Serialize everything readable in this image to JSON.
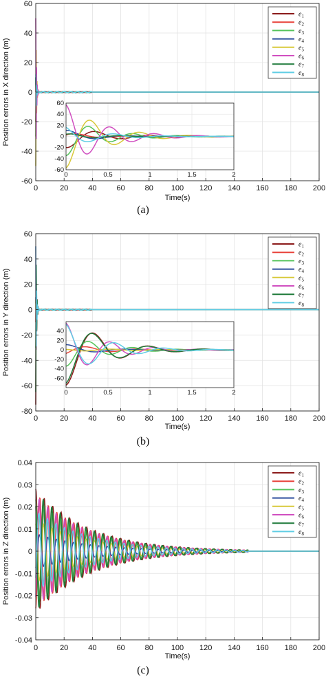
{
  "chart_data": [
    {
      "type": "line",
      "panel_label": "(a)",
      "xlabel": "Time(s)",
      "ylabel": "Position errors in X direction (m)",
      "xlim": [
        0,
        200
      ],
      "ylim": [
        -60,
        60
      ],
      "xticks": [
        0,
        20,
        40,
        60,
        80,
        100,
        120,
        140,
        160,
        180,
        200
      ],
      "yticks": [
        -60,
        -40,
        -20,
        0,
        20,
        40,
        60
      ],
      "grid": true,
      "legend_position": "top-right",
      "series": [
        {
          "name": "e1",
          "color": "#8b1a1a",
          "initial_value": -20
        },
        {
          "name": "e2",
          "color": "#e8423a",
          "initial_value": 0
        },
        {
          "name": "e3",
          "color": "#55c35a",
          "initial_value": -30
        },
        {
          "name": "e4",
          "color": "#2f4f9e",
          "initial_value": 5
        },
        {
          "name": "e5",
          "color": "#d8c93a",
          "initial_value": -50
        },
        {
          "name": "e6",
          "color": "#d04fc0",
          "initial_value": 50
        },
        {
          "name": "e7",
          "color": "#1f7a3a",
          "initial_value": 10
        },
        {
          "name": "e8",
          "color": "#5fcde4",
          "initial_value": 12
        }
      ],
      "inset": {
        "xlim": [
          0,
          2
        ],
        "ylim": [
          -60,
          60
        ],
        "xticks": [
          0,
          0.5,
          1,
          1.5,
          2
        ],
        "yticks": [
          -60,
          -40,
          -20,
          0,
          20,
          40,
          60
        ]
      }
    },
    {
      "type": "line",
      "panel_label": "(b)",
      "xlabel": "Time(s)",
      "ylabel": "Position errors in Y direction (m)",
      "xlim": [
        0,
        200
      ],
      "ylim": [
        -80,
        60
      ],
      "xticks": [
        0,
        20,
        40,
        60,
        80,
        100,
        120,
        140,
        160,
        180,
        200
      ],
      "yticks": [
        -80,
        -60,
        -40,
        -20,
        0,
        20,
        40,
        60
      ],
      "grid": true,
      "legend_position": "top-right",
      "series": [
        {
          "name": "e1",
          "color": "#8b1a1a",
          "initial_value": -75
        },
        {
          "name": "e2",
          "color": "#e8423a",
          "initial_value": -10
        },
        {
          "name": "e3",
          "color": "#55c35a",
          "initial_value": -30
        },
        {
          "name": "e4",
          "color": "#2f4f9e",
          "initial_value": 5
        },
        {
          "name": "e5",
          "color": "#d8c93a",
          "initial_value": 8
        },
        {
          "name": "e6",
          "color": "#d04fc0",
          "initial_value": 50
        },
        {
          "name": "e7",
          "color": "#1f7a3a",
          "initial_value": -65
        },
        {
          "name": "e8",
          "color": "#5fcde4",
          "initial_value": 50
        }
      ],
      "inset": {
        "xlim": [
          0,
          2
        ],
        "ylim": [
          -80,
          60
        ],
        "xticks": [
          0,
          0.5,
          1,
          1.5,
          2
        ],
        "yticks": [
          -60,
          -40,
          -20,
          0,
          20,
          40
        ]
      }
    },
    {
      "type": "line",
      "panel_label": "(c)",
      "xlabel": "Time(s)",
      "ylabel": "Position errors in Z direction (m)",
      "xlim": [
        0,
        200
      ],
      "ylim": [
        -0.04,
        0.04
      ],
      "xticks": [
        0,
        20,
        40,
        60,
        80,
        100,
        120,
        140,
        160,
        180,
        200
      ],
      "yticks": [
        -0.04,
        -0.03,
        -0.02,
        -0.01,
        0,
        0.01,
        0.02,
        0.03,
        0.04
      ],
      "grid": true,
      "legend_position": "top-right",
      "oscillation": {
        "period_s": 6,
        "decay_end_s": 150
      },
      "series": [
        {
          "name": "e1",
          "color": "#8b1a1a",
          "amplitude": 0.028
        },
        {
          "name": "e2",
          "color": "#e8423a",
          "amplitude": 0.026
        },
        {
          "name": "e3",
          "color": "#55c35a",
          "amplitude": 0.024
        },
        {
          "name": "e4",
          "color": "#2f4f9e",
          "amplitude": 0.008
        },
        {
          "name": "e5",
          "color": "#d8c93a",
          "amplitude": 0.014
        },
        {
          "name": "e6",
          "color": "#d04fc0",
          "amplitude": 0.025
        },
        {
          "name": "e7",
          "color": "#1f7a3a",
          "amplitude": 0.027
        },
        {
          "name": "e8",
          "color": "#5fcde4",
          "amplitude": 0.018
        }
      ]
    }
  ]
}
